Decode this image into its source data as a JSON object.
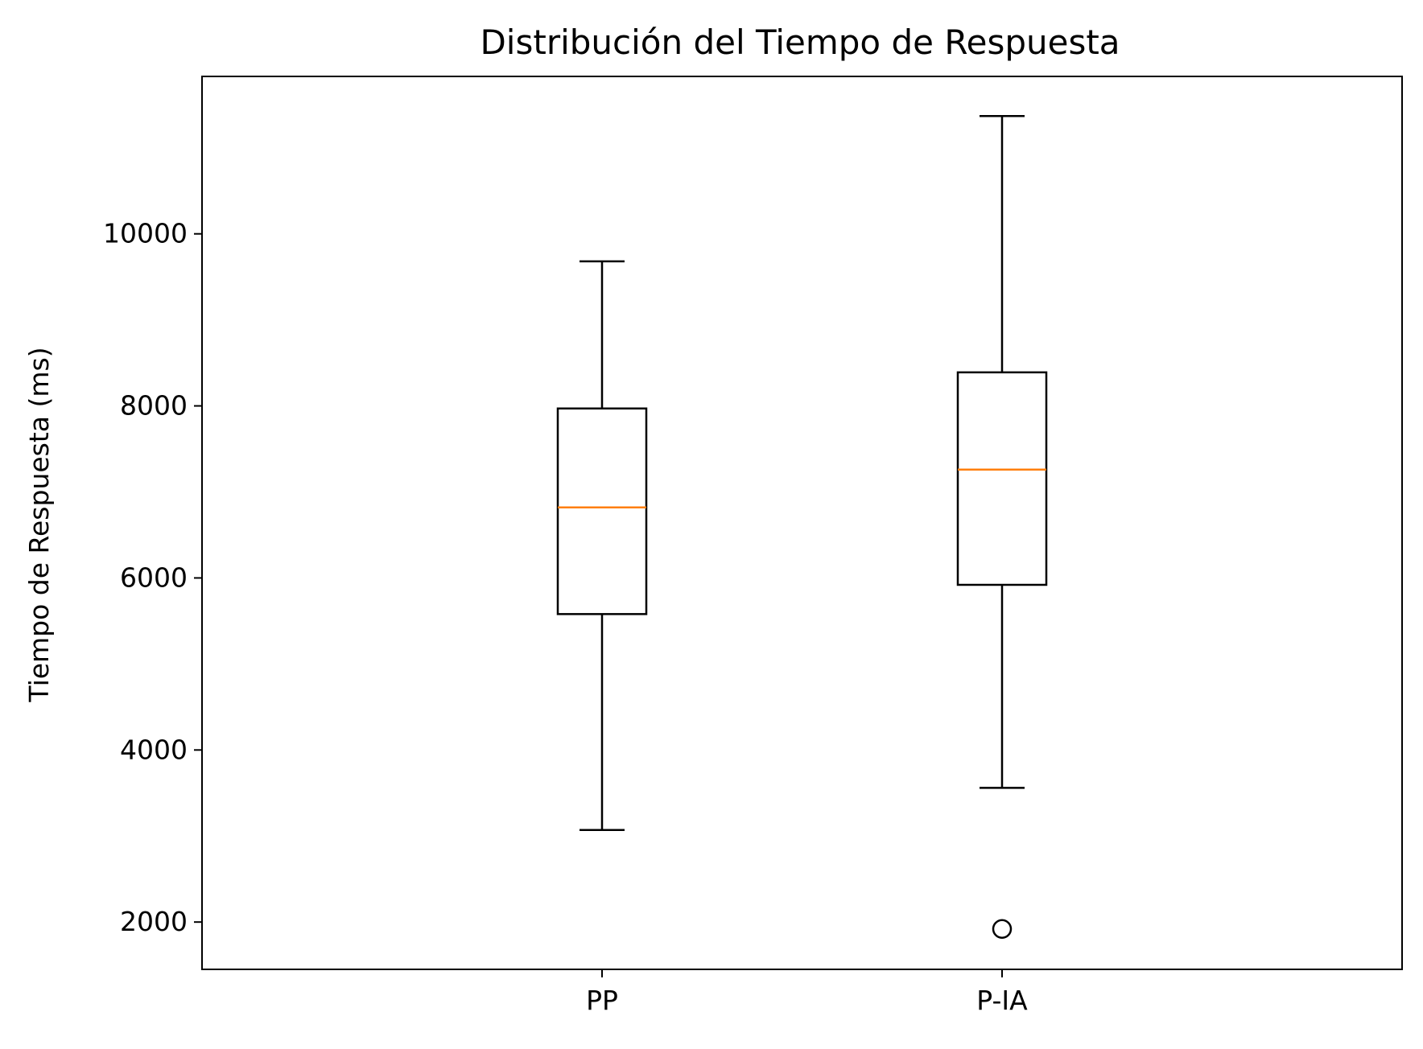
{
  "chart_data": {
    "type": "boxplot",
    "title": "Distribución del Tiempo de Respuesta",
    "xlabel": "",
    "ylabel": "Tiempo de Respuesta (ms)",
    "categories": [
      "PP",
      "P-IA"
    ],
    "boxes": [
      {
        "category": "PP",
        "whisker_low": 3070,
        "q1": 5580,
        "median": 6820,
        "q3": 7970,
        "whisker_high": 9680,
        "outliers": []
      },
      {
        "category": "P-IA",
        "whisker_low": 3560,
        "q1": 5920,
        "median": 7260,
        "q3": 8390,
        "whisker_high": 11370,
        "outliers": [
          1920
        ]
      }
    ],
    "ylim": [
      1450,
      11830
    ],
    "yticks": [
      2000,
      4000,
      6000,
      8000,
      10000
    ],
    "grid": false,
    "colors": {
      "box": "#000000",
      "median": "#ff7f0e",
      "outlier": "#000000"
    }
  }
}
